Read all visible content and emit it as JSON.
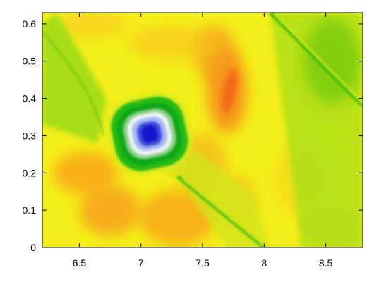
{
  "chart_data": {
    "type": "heatmap",
    "title": "",
    "xlabel": "",
    "ylabel": "",
    "xlim": [
      6.2,
      8.8
    ],
    "ylim": [
      0,
      0.63
    ],
    "x_ticks": [
      6.5,
      7,
      7.5,
      8,
      8.5
    ],
    "y_ticks": [
      0,
      0.1,
      0.2,
      0.3,
      0.4,
      0.5,
      0.6
    ],
    "x_tick_labels": [
      "6.5",
      "7",
      "7.5",
      "8",
      "8.5"
    ],
    "y_tick_labels": [
      "0",
      "0.1",
      "0.2",
      "0.3",
      "0.4",
      "0.5",
      "0.6"
    ],
    "colormap": [
      "#1a1acc",
      "#ffffff",
      "#00b400",
      "#ffff00",
      "#ff7f00",
      "#ff2a00"
    ],
    "grid": false,
    "features": [
      {
        "kind": "vortex_core",
        "x": 7.07,
        "y": 0.305,
        "value": 0.0
      },
      {
        "kind": "shock_front",
        "from": [
          7.3,
          0.19
        ],
        "to": [
          8.0,
          0.0
        ]
      },
      {
        "kind": "shock_front",
        "from": [
          8.05,
          0.63
        ],
        "to": [
          8.8,
          0.38
        ]
      },
      {
        "kind": "low_region",
        "x": 6.35,
        "y": 0.45
      },
      {
        "kind": "low_region",
        "x": 8.55,
        "y": 0.45
      },
      {
        "kind": "high_region",
        "x": 7.65,
        "y": 0.42
      }
    ]
  }
}
